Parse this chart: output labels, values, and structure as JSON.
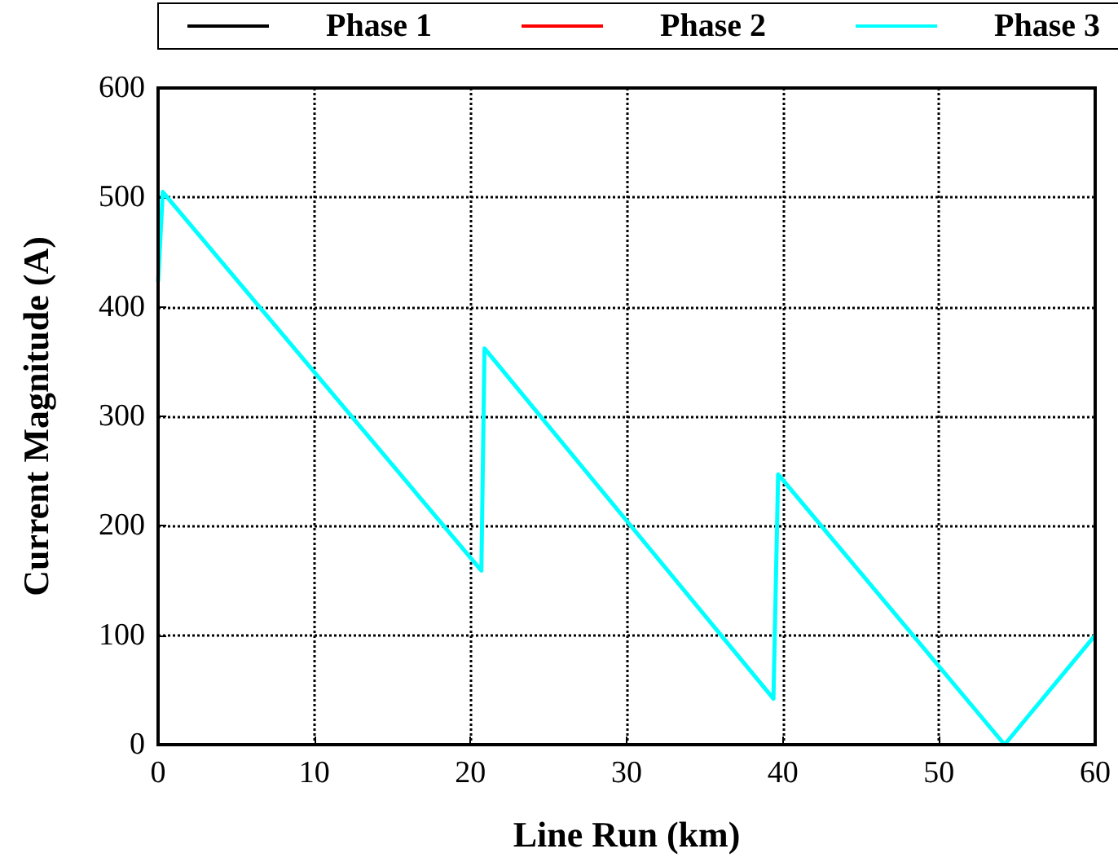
{
  "chart_data": {
    "type": "line",
    "xlabel": "Line Run (km)",
    "ylabel": "Current Magnitude (A)",
    "x": [
      0,
      0.3,
      20.7,
      20.9,
      39.4,
      39.7,
      54.2,
      60
    ],
    "series": [
      {
        "name": "Phase 1",
        "color": "#000000",
        "values": [
          null,
          null,
          null,
          null,
          null,
          null,
          null,
          null
        ]
      },
      {
        "name": "Phase 2",
        "color": "#ff0000",
        "values": [
          null,
          null,
          null,
          null,
          null,
          null,
          null,
          null
        ]
      },
      {
        "name": "Phase 3",
        "color": "#00ffff",
        "values": [
          423,
          505,
          159,
          362,
          42,
          247,
          0,
          100
        ]
      }
    ],
    "xlim": [
      0,
      60
    ],
    "xticks": [
      0,
      10,
      20,
      30,
      40,
      50,
      60
    ],
    "ylim": [
      0,
      600
    ],
    "yticks": [
      0,
      100,
      200,
      300,
      400,
      500,
      600
    ],
    "grid": true,
    "legend": "top",
    "line_style": "solid",
    "marker": "none"
  }
}
